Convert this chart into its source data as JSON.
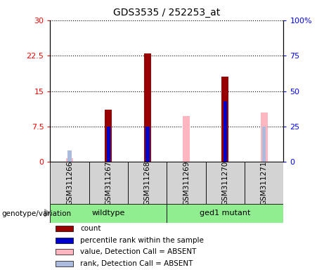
{
  "title": "GDS3535 / 252253_at",
  "samples": [
    "GSM311266",
    "GSM311267",
    "GSM311268",
    "GSM311269",
    "GSM311270",
    "GSM311271"
  ],
  "groups": [
    "wildtype",
    "wildtype",
    "wildtype",
    "ged1 mutant",
    "ged1 mutant",
    "ged1 mutant"
  ],
  "group_labels": [
    "wildtype",
    "ged1 mutant"
  ],
  "count_values": [
    null,
    11.0,
    23.0,
    null,
    18.0,
    null
  ],
  "percentile_values": [
    null,
    25.0,
    25.0,
    null,
    43.0,
    null
  ],
  "absent_value_values": [
    0.8,
    null,
    null,
    9.8,
    null,
    10.5
  ],
  "absent_rank_values": [
    8.0,
    null,
    null,
    null,
    null,
    25.0
  ],
  "ylim": [
    0,
    30
  ],
  "y2lim": [
    0,
    100
  ],
  "yticks": [
    0,
    7.5,
    15,
    22.5,
    30
  ],
  "ytick_labels": [
    "0",
    "7.5",
    "15",
    "22.5",
    "30"
  ],
  "y2ticks": [
    0,
    25,
    50,
    75,
    100
  ],
  "y2tick_labels": [
    "0",
    "25",
    "50",
    "75",
    "100%"
  ],
  "count_color": "#990000",
  "percentile_color": "#0000CC",
  "absent_value_color": "#FFB6C1",
  "absent_rank_color": "#AABBDD",
  "genotype_label": "genotype/variation",
  "legend_items": [
    {
      "label": "count",
      "color": "#990000"
    },
    {
      "label": "percentile rank within the sample",
      "color": "#0000CC"
    },
    {
      "label": "value, Detection Call = ABSENT",
      "color": "#FFB6C1"
    },
    {
      "label": "rank, Detection Call = ABSENT",
      "color": "#AABBDD"
    }
  ]
}
